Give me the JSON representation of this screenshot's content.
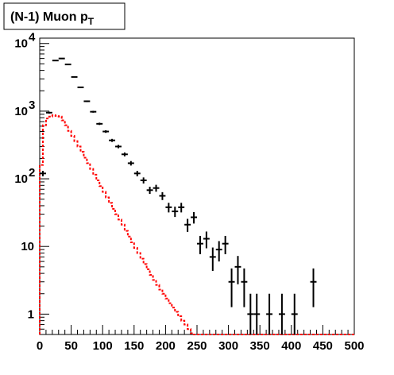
{
  "chart_data": {
    "type": "scatter",
    "title": "(N-1) Muon p",
    "title_subscript": "T",
    "xlabel": "",
    "ylabel": "",
    "xlim": [
      0,
      500
    ],
    "ylim": [
      0.5,
      12000
    ],
    "y_scale": "log",
    "grid": false,
    "legend": "none",
    "x_tick_labels": [
      "0",
      "50",
      "100",
      "150",
      "200",
      "250",
      "300",
      "350",
      "400",
      "450",
      "500"
    ],
    "y_tick_labels": [
      {
        "value": 1,
        "label": "1"
      },
      {
        "value": 10,
        "label": "10"
      },
      {
        "value": 100,
        "base": "10",
        "exp": "2"
      },
      {
        "value": 1000,
        "base": "10",
        "exp": "3"
      },
      {
        "value": 10000,
        "base": "10",
        "exp": "4"
      }
    ],
    "bin_width": 10,
    "series": [
      {
        "style": "points-with-errors",
        "color": "#000000",
        "points": [
          {
            "x": 0,
            "y": 120
          },
          {
            "x": 10,
            "y": 950
          },
          {
            "x": 20,
            "y": 5600
          },
          {
            "x": 30,
            "y": 6000
          },
          {
            "x": 40,
            "y": 4900
          },
          {
            "x": 50,
            "y": 3200
          },
          {
            "x": 60,
            "y": 2250
          },
          {
            "x": 70,
            "y": 1400
          },
          {
            "x": 80,
            "y": 980
          },
          {
            "x": 90,
            "y": 650
          },
          {
            "x": 100,
            "y": 500
          },
          {
            "x": 110,
            "y": 370
          },
          {
            "x": 120,
            "y": 300
          },
          {
            "x": 130,
            "y": 230
          },
          {
            "x": 140,
            "y": 170
          },
          {
            "x": 150,
            "y": 120
          },
          {
            "x": 160,
            "y": 95
          },
          {
            "x": 170,
            "y": 68
          },
          {
            "x": 180,
            "y": 73
          },
          {
            "x": 190,
            "y": 56
          },
          {
            "x": 200,
            "y": 38
          },
          {
            "x": 210,
            "y": 33
          },
          {
            "x": 220,
            "y": 38
          },
          {
            "x": 230,
            "y": 21
          },
          {
            "x": 240,
            "y": 27
          },
          {
            "x": 250,
            "y": 11
          },
          {
            "x": 260,
            "y": 13
          },
          {
            "x": 270,
            "y": 7
          },
          {
            "x": 280,
            "y": 9
          },
          {
            "x": 290,
            "y": 11
          },
          {
            "x": 300,
            "y": 3
          },
          {
            "x": 310,
            "y": 5
          },
          {
            "x": 320,
            "y": 3
          },
          {
            "x": 330,
            "y": 1
          },
          {
            "x": 340,
            "y": 1
          },
          {
            "x": 360,
            "y": 1
          },
          {
            "x": 380,
            "y": 1
          },
          {
            "x": 400,
            "y": 1
          },
          {
            "x": 430,
            "y": 3
          }
        ]
      },
      {
        "style": "step-histogram",
        "color": "#ff0000",
        "line": "dashed",
        "bins": [
          {
            "x": 0,
            "y": 160
          },
          {
            "x": 5,
            "y": 620
          },
          {
            "x": 10,
            "y": 780
          },
          {
            "x": 15,
            "y": 830
          },
          {
            "x": 20,
            "y": 870
          },
          {
            "x": 25,
            "y": 850
          },
          {
            "x": 30,
            "y": 830
          },
          {
            "x": 35,
            "y": 730
          },
          {
            "x": 40,
            "y": 620
          },
          {
            "x": 45,
            "y": 510
          },
          {
            "x": 50,
            "y": 430
          },
          {
            "x": 55,
            "y": 360
          },
          {
            "x": 60,
            "y": 300
          },
          {
            "x": 65,
            "y": 250
          },
          {
            "x": 70,
            "y": 205
          },
          {
            "x": 75,
            "y": 170
          },
          {
            "x": 80,
            "y": 140
          },
          {
            "x": 85,
            "y": 115
          },
          {
            "x": 90,
            "y": 95
          },
          {
            "x": 95,
            "y": 78
          },
          {
            "x": 100,
            "y": 64
          },
          {
            "x": 105,
            "y": 53
          },
          {
            "x": 110,
            "y": 44
          },
          {
            "x": 115,
            "y": 36
          },
          {
            "x": 120,
            "y": 30
          },
          {
            "x": 125,
            "y": 25
          },
          {
            "x": 130,
            "y": 21
          },
          {
            "x": 135,
            "y": 17
          },
          {
            "x": 140,
            "y": 14
          },
          {
            "x": 145,
            "y": 11.5
          },
          {
            "x": 150,
            "y": 9.5
          },
          {
            "x": 155,
            "y": 8
          },
          {
            "x": 160,
            "y": 6.6
          },
          {
            "x": 165,
            "y": 5.5
          },
          {
            "x": 170,
            "y": 4.6
          },
          {
            "x": 175,
            "y": 3.8
          },
          {
            "x": 180,
            "y": 3.2
          },
          {
            "x": 185,
            "y": 2.7
          },
          {
            "x": 190,
            "y": 2.3
          },
          {
            "x": 195,
            "y": 2.0
          },
          {
            "x": 200,
            "y": 1.7
          },
          {
            "x": 205,
            "y": 1.45
          },
          {
            "x": 210,
            "y": 1.25
          },
          {
            "x": 215,
            "y": 1.08
          },
          {
            "x": 220,
            "y": 0.93
          },
          {
            "x": 225,
            "y": 0.8
          },
          {
            "x": 230,
            "y": 0.7
          },
          {
            "x": 235,
            "y": 0.6
          },
          {
            "x": 240,
            "y": 0.52
          },
          {
            "x": 245,
            "y": 0.45
          },
          {
            "x": 250,
            "y": 0.4
          }
        ]
      }
    ]
  }
}
